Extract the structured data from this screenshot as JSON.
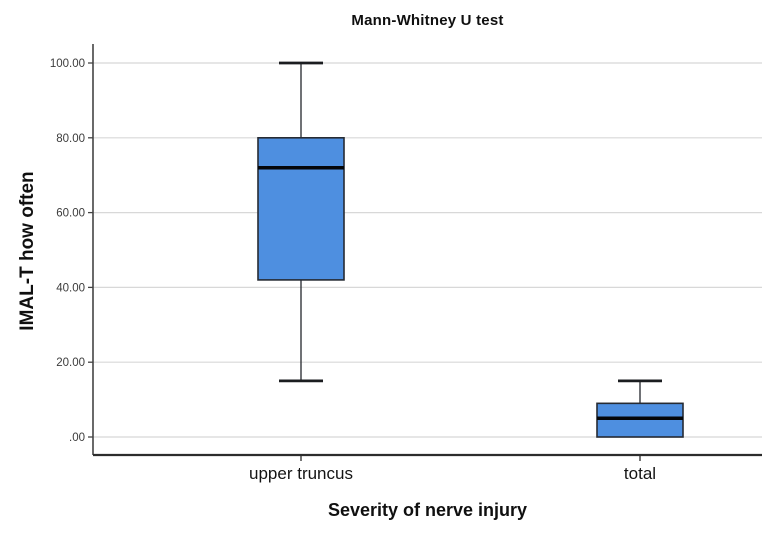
{
  "chart": {
    "title": "Mann-Whitney U test",
    "x_axis_title": "Severity of nerve injury",
    "y_axis_title": "IMAL-T how often"
  },
  "chart_data": {
    "type": "boxplot",
    "title": "Mann-Whitney U test",
    "xlabel": "Severity of nerve injury",
    "ylabel": "IMAL-T how often",
    "ylim": [
      0,
      100
    ],
    "grid": "horizontal",
    "legend": "none",
    "y_ticks": [
      {
        "value": 100,
        "label": "100.00"
      },
      {
        "value": 80,
        "label": "80.00"
      },
      {
        "value": 60,
        "label": "60.00"
      },
      {
        "value": 40,
        "label": "40.00"
      },
      {
        "value": 20,
        "label": "20.00"
      },
      {
        "value": 0,
        "label": ".00"
      }
    ],
    "categories": [
      "upper truncus",
      "total"
    ],
    "series": [
      {
        "category": "upper truncus",
        "whisker_low": 15,
        "q1": 42,
        "median": 72,
        "q3": 80,
        "whisker_high": 100
      },
      {
        "category": "total",
        "whisker_low": 0,
        "q1": 0,
        "median": 5,
        "q3": 9,
        "whisker_high": 15
      }
    ],
    "colors": {
      "box_fill": "#4E8FE0",
      "box_border": "#262b33",
      "median_line": "#04060a",
      "whisker": "#33363b",
      "whisker_cap": "#1b1d20",
      "gridline": "#d8d8d8",
      "y_axis_line": "#444444",
      "x_axis_line": "#2c2c2c",
      "tick_text": "#3c3c3c",
      "category_text": "#141414"
    }
  }
}
